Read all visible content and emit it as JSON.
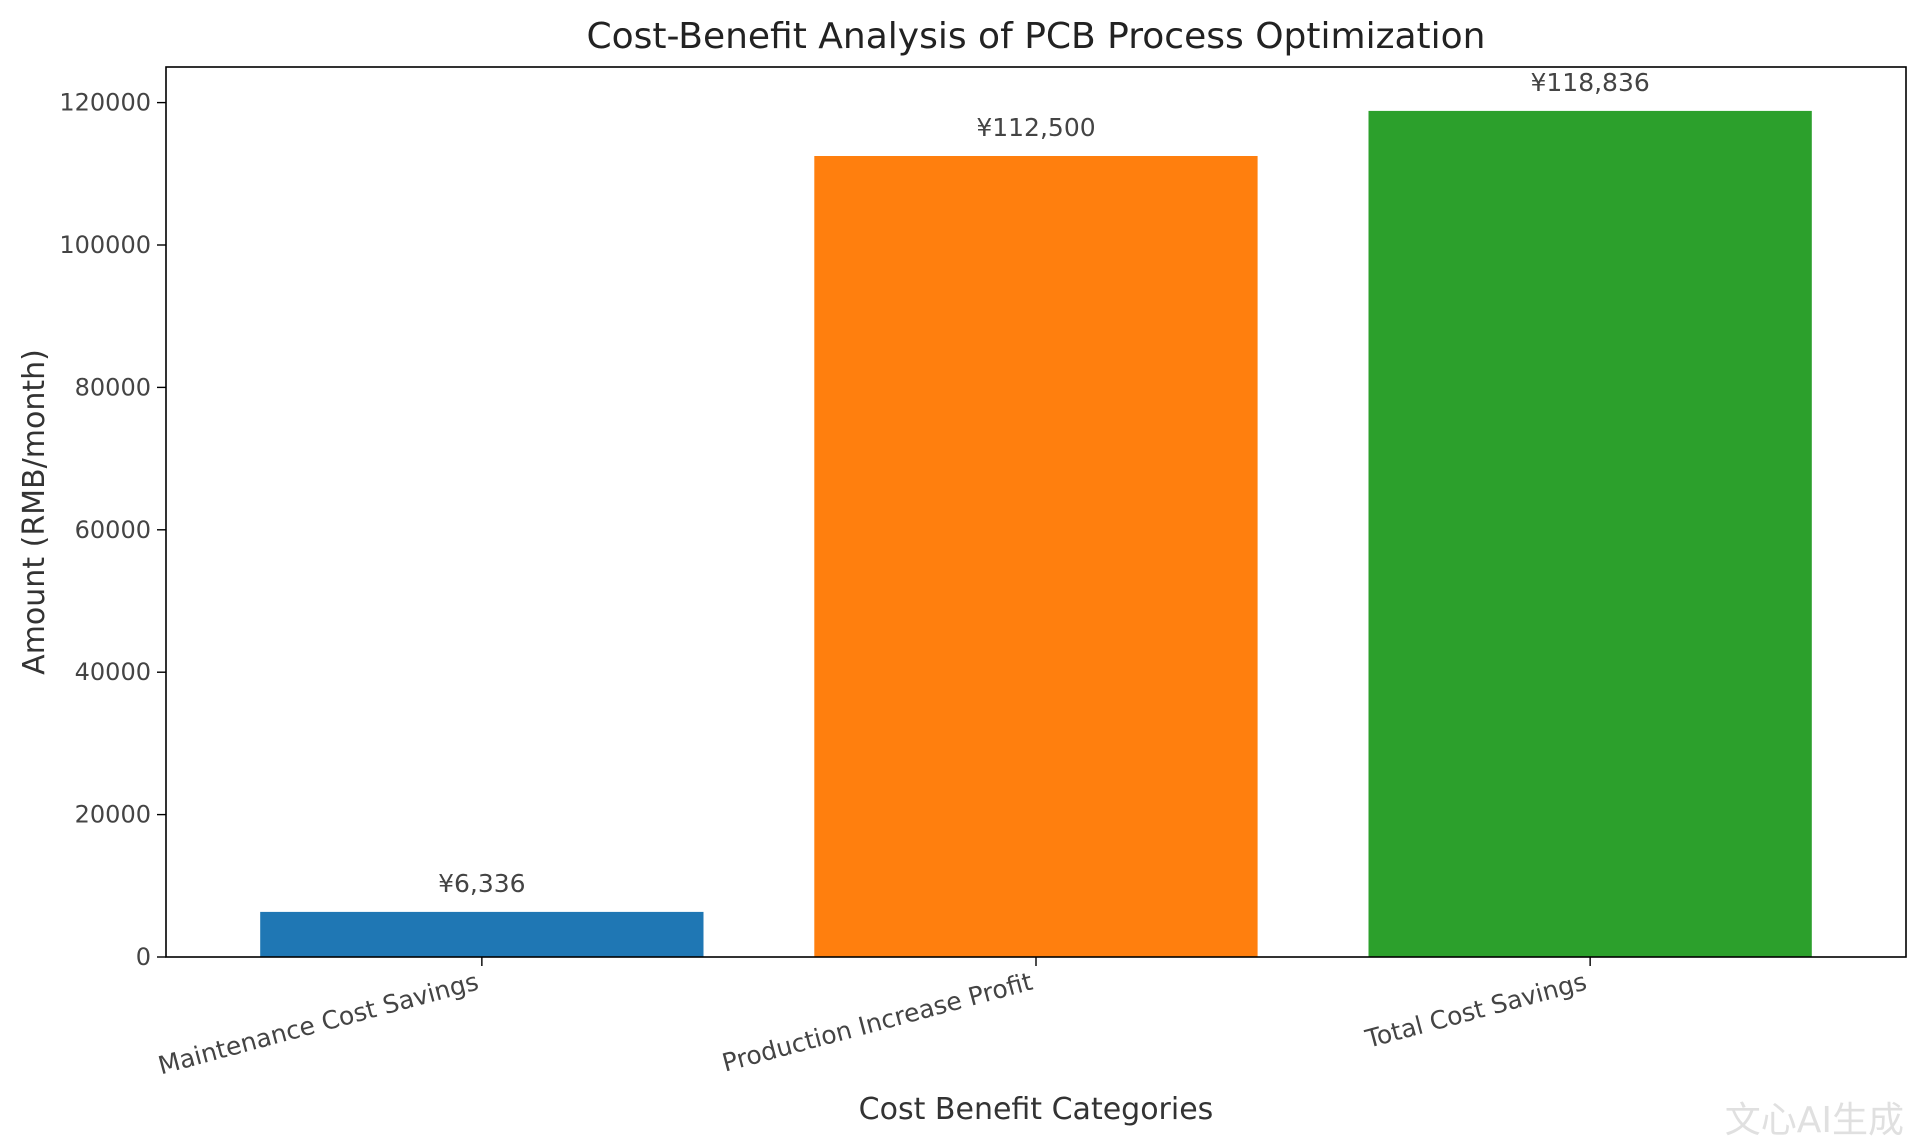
{
  "chart_data": {
    "type": "bar",
    "title": "Cost-Benefit Analysis of PCB Process Optimization",
    "xlabel": "Cost Benefit Categories",
    "ylabel": "Amount (RMB/month)",
    "categories": [
      "Maintenance Cost Savings",
      "Production Increase Profit",
      "Total Cost Savings"
    ],
    "values": [
      6336,
      112500,
      118836
    ],
    "data_labels": [
      "¥6,336",
      "¥112,500",
      "¥118,836"
    ],
    "colors": [
      "#1f77b4",
      "#ff7f0e",
      "#2ca02c"
    ],
    "ylim": [
      0,
      125000
    ],
    "yticks": [
      0,
      20000,
      40000,
      60000,
      80000,
      100000,
      120000
    ],
    "ytick_labels": [
      "0",
      "20000",
      "40000",
      "60000",
      "80000",
      "100000",
      "120000"
    ],
    "grid": false,
    "legend": "none"
  },
  "watermark": "文心AI生成"
}
